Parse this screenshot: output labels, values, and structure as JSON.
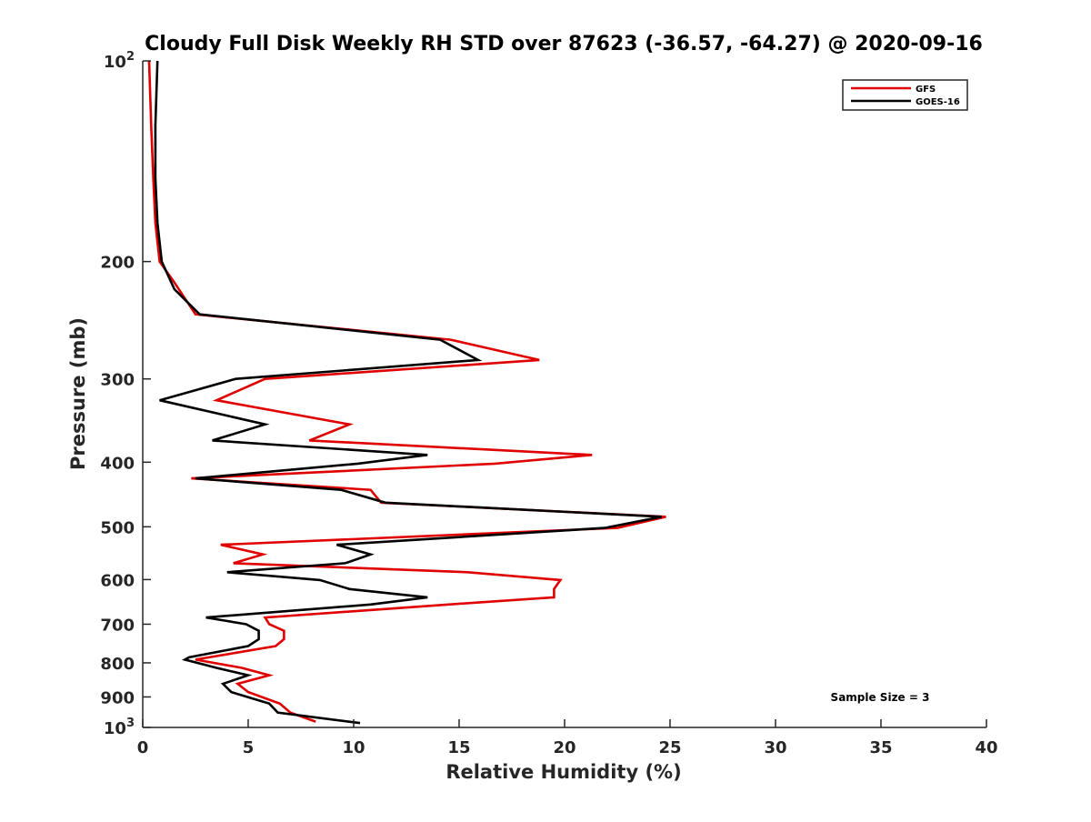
{
  "chart_data": {
    "type": "line",
    "title": "Cloudy Full Disk Weekly RH STD over 87623 (-36.57, -64.27) @ 2020-09-16",
    "xlabel": "Relative Humidity (%)",
    "ylabel": "Pressure (mb)",
    "xlim": [
      0,
      40
    ],
    "ylim": [
      100,
      1000
    ],
    "y_scale": "log",
    "y_reversed": true,
    "grid": false,
    "legend_position": "top-right",
    "x_ticks": [
      "0",
      "5",
      "10",
      "15",
      "20",
      "25",
      "30",
      "35",
      "40"
    ],
    "y_ticks": [
      {
        "value": 100,
        "base": "10",
        "exp": "2"
      },
      {
        "value": 200,
        "label": "200"
      },
      {
        "value": 300,
        "label": "300"
      },
      {
        "value": 400,
        "label": "400"
      },
      {
        "value": 500,
        "label": "500"
      },
      {
        "value": 600,
        "label": "600"
      },
      {
        "value": 700,
        "label": "700"
      },
      {
        "value": 800,
        "label": "800"
      },
      {
        "value": 900,
        "label": "900"
      },
      {
        "value": 1000,
        "base": "10",
        "exp": "3"
      }
    ],
    "annotation": "Sample Size = 3",
    "series": [
      {
        "name": "GFS",
        "color": "#e00000",
        "points": [
          [
            0.3,
            100
          ],
          [
            0.4,
            125
          ],
          [
            0.5,
            150
          ],
          [
            0.6,
            175
          ],
          [
            0.8,
            200
          ],
          [
            1.5,
            215
          ],
          [
            2.5,
            240
          ],
          [
            14.6,
            262
          ],
          [
            18.8,
            281
          ],
          [
            5.8,
            300
          ],
          [
            3.5,
            323
          ],
          [
            9.8,
            351
          ],
          [
            7.9,
            371
          ],
          [
            21.3,
            390
          ],
          [
            16.7,
            402
          ],
          [
            2.3,
            423
          ],
          [
            10.8,
            440
          ],
          [
            11.3,
            460
          ],
          [
            24.8,
            483
          ],
          [
            22.5,
            502
          ],
          [
            3.7,
            532
          ],
          [
            5.7,
            550
          ],
          [
            4.3,
            567
          ],
          [
            15.4,
            585
          ],
          [
            19.8,
            601
          ],
          [
            19.5,
            620
          ],
          [
            19.5,
            638
          ],
          [
            14.5,
            654
          ],
          [
            5.8,
            684
          ],
          [
            6.0,
            700
          ],
          [
            6.7,
            716
          ],
          [
            6.7,
            737
          ],
          [
            6.3,
            755
          ],
          [
            2.5,
            791
          ],
          [
            4.7,
            814
          ],
          [
            6.0,
            835
          ],
          [
            4.5,
            860
          ],
          [
            5.0,
            885
          ],
          [
            6.5,
            921
          ],
          [
            7.0,
            950
          ],
          [
            8.2,
            980
          ]
        ]
      },
      {
        "name": "GOES-16",
        "color": "#000000",
        "points": [
          [
            0.7,
            100
          ],
          [
            0.6,
            125
          ],
          [
            0.6,
            150
          ],
          [
            0.7,
            175
          ],
          [
            0.9,
            200
          ],
          [
            1.5,
            220
          ],
          [
            2.7,
            240
          ],
          [
            14.1,
            262
          ],
          [
            15.9,
            281
          ],
          [
            4.4,
            300
          ],
          [
            0.8,
            323
          ],
          [
            5.8,
            351
          ],
          [
            3.3,
            371
          ],
          [
            13.5,
            390
          ],
          [
            10.2,
            402
          ],
          [
            2.5,
            423
          ],
          [
            9.4,
            440
          ],
          [
            11.5,
            460
          ],
          [
            24.6,
            483
          ],
          [
            21.9,
            502
          ],
          [
            9.2,
            532
          ],
          [
            10.8,
            550
          ],
          [
            9.6,
            567
          ],
          [
            4.0,
            585
          ],
          [
            8.4,
            601
          ],
          [
            9.8,
            620
          ],
          [
            13.5,
            638
          ],
          [
            10.8,
            654
          ],
          [
            3.0,
            684
          ],
          [
            4.9,
            700
          ],
          [
            5.5,
            716
          ],
          [
            5.5,
            737
          ],
          [
            5.0,
            755
          ],
          [
            2.2,
            785
          ],
          [
            2.0,
            791
          ],
          [
            3.5,
            814
          ],
          [
            5.0,
            835
          ],
          [
            3.8,
            860
          ],
          [
            4.2,
            885
          ],
          [
            6.0,
            921
          ],
          [
            6.4,
            950
          ],
          [
            10.3,
            985
          ]
        ]
      }
    ]
  }
}
